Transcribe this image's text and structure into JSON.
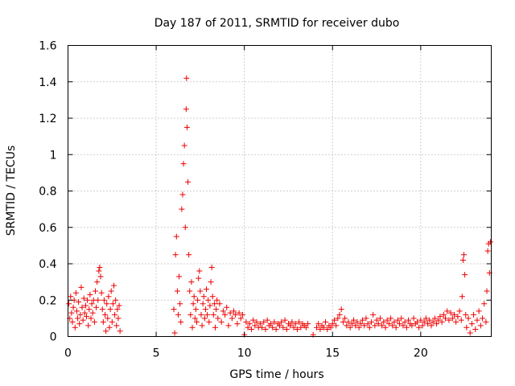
{
  "chart_data": {
    "type": "scatter",
    "title": "Day 187 of 2011, SRMTID for receiver dubo",
    "xlabel": "GPS time / hours",
    "ylabel": "SRMTID / TECUs",
    "xlim": [
      0,
      24
    ],
    "ylim": [
      0,
      1.6
    ],
    "xticks": [
      0,
      5,
      10,
      15,
      20
    ],
    "xtick_labels": [
      "0",
      "5",
      "10",
      "15",
      "20"
    ],
    "yticks": [
      0,
      0.2,
      0.4,
      0.6,
      0.8,
      1.0,
      1.2,
      1.4,
      1.6
    ],
    "ytick_labels": [
      "0",
      "0.2",
      "0.4",
      "0.6",
      "0.8",
      "1",
      "1.2",
      "1.4",
      "1.6"
    ],
    "grid": true,
    "marker": "+",
    "series": [
      {
        "name": "SRMTID",
        "color": "#ee0000",
        "points": [
          [
            0.05,
            0.18
          ],
          [
            0.1,
            0.1
          ],
          [
            0.15,
            0.22
          ],
          [
            0.2,
            0.13
          ],
          [
            0.25,
            0.08
          ],
          [
            0.3,
            0.16
          ],
          [
            0.35,
            0.2
          ],
          [
            0.4,
            0.05
          ],
          [
            0.45,
            0.24
          ],
          [
            0.5,
            0.14
          ],
          [
            0.55,
            0.1
          ],
          [
            0.6,
            0.19
          ],
          [
            0.65,
            0.07
          ],
          [
            0.7,
            0.12
          ],
          [
            0.75,
            0.27
          ],
          [
            0.8,
            0.16
          ],
          [
            0.85,
            0.09
          ],
          [
            0.9,
            0.21
          ],
          [
            0.95,
            0.13
          ],
          [
            1.0,
            0.17
          ],
          [
            1.05,
            0.11
          ],
          [
            1.1,
            0.2
          ],
          [
            1.15,
            0.06
          ],
          [
            1.2,
            0.15
          ],
          [
            1.25,
            0.23
          ],
          [
            1.3,
            0.1
          ],
          [
            1.35,
            0.18
          ],
          [
            1.4,
            0.13
          ],
          [
            1.45,
            0.2
          ],
          [
            1.5,
            0.08
          ],
          [
            1.55,
            0.25
          ],
          [
            1.6,
            0.16
          ],
          [
            1.65,
            0.3
          ],
          [
            1.7,
            0.2
          ],
          [
            1.75,
            0.36
          ],
          [
            1.8,
            0.38
          ],
          [
            1.85,
            0.33
          ],
          [
            1.9,
            0.24
          ],
          [
            1.95,
            0.15
          ],
          [
            2.0,
            0.08
          ],
          [
            2.05,
            0.2
          ],
          [
            2.1,
            0.12
          ],
          [
            2.15,
            0.03
          ],
          [
            2.2,
            0.18
          ],
          [
            2.25,
            0.1
          ],
          [
            2.3,
            0.22
          ],
          [
            2.35,
            0.05
          ],
          [
            2.4,
            0.15
          ],
          [
            2.45,
            0.25
          ],
          [
            2.5,
            0.08
          ],
          [
            2.55,
            0.18
          ],
          [
            2.6,
            0.28
          ],
          [
            2.65,
            0.12
          ],
          [
            2.7,
            0.2
          ],
          [
            2.75,
            0.06
          ],
          [
            2.8,
            0.15
          ],
          [
            2.85,
            0.1
          ],
          [
            2.9,
            0.17
          ],
          [
            2.95,
            0.03
          ],
          [
            6.0,
            0.15
          ],
          [
            6.05,
            0.02
          ],
          [
            6.1,
            0.45
          ],
          [
            6.15,
            0.55
          ],
          [
            6.2,
            0.25
          ],
          [
            6.25,
            0.12
          ],
          [
            6.3,
            0.33
          ],
          [
            6.35,
            0.18
          ],
          [
            6.4,
            0.08
          ],
          [
            6.45,
            0.7
          ],
          [
            6.5,
            0.78
          ],
          [
            6.55,
            0.95
          ],
          [
            6.6,
            1.05
          ],
          [
            6.65,
            0.6
          ],
          [
            6.7,
            1.25
          ],
          [
            6.72,
            1.42
          ],
          [
            6.75,
            1.15
          ],
          [
            6.8,
            0.85
          ],
          [
            6.85,
            0.45
          ],
          [
            6.9,
            0.25
          ],
          [
            6.95,
            0.12
          ],
          [
            7.0,
            0.3
          ],
          [
            7.05,
            0.05
          ],
          [
            7.1,
            0.18
          ],
          [
            7.15,
            0.22
          ],
          [
            7.2,
            0.1
          ],
          [
            7.25,
            0.15
          ],
          [
            7.3,
            0.08
          ],
          [
            7.35,
            0.2
          ],
          [
            7.4,
            0.32
          ],
          [
            7.45,
            0.36
          ],
          [
            7.5,
            0.25
          ],
          [
            7.55,
            0.12
          ],
          [
            7.6,
            0.06
          ],
          [
            7.65,
            0.18
          ],
          [
            7.7,
            0.22
          ],
          [
            7.75,
            0.1
          ],
          [
            7.8,
            0.15
          ],
          [
            7.85,
            0.26
          ],
          [
            7.9,
            0.12
          ],
          [
            7.95,
            0.2
          ],
          [
            8.0,
            0.08
          ],
          [
            8.05,
            0.17
          ],
          [
            8.1,
            0.3
          ],
          [
            8.15,
            0.38
          ],
          [
            8.2,
            0.22
          ],
          [
            8.25,
            0.12
          ],
          [
            8.3,
            0.18
          ],
          [
            8.35,
            0.05
          ],
          [
            8.4,
            0.15
          ],
          [
            8.45,
            0.2
          ],
          [
            8.5,
            0.1
          ],
          [
            8.6,
            0.18
          ],
          [
            8.7,
            0.08
          ],
          [
            8.8,
            0.14
          ],
          [
            8.9,
            0.12
          ],
          [
            9.0,
            0.16
          ],
          [
            9.1,
            0.06
          ],
          [
            9.2,
            0.13
          ],
          [
            9.3,
            0.1
          ],
          [
            9.4,
            0.14
          ],
          [
            9.5,
            0.12
          ],
          [
            9.6,
            0.07
          ],
          [
            9.7,
            0.13
          ],
          [
            9.8,
            0.1
          ],
          [
            9.9,
            0.12
          ],
          [
            10.0,
            0.01
          ],
          [
            10.1,
            0.08
          ],
          [
            10.2,
            0.05
          ],
          [
            10.3,
            0.07
          ],
          [
            10.4,
            0.04
          ],
          [
            10.5,
            0.09
          ],
          [
            10.6,
            0.06
          ],
          [
            10.7,
            0.08
          ],
          [
            10.8,
            0.05
          ],
          [
            10.9,
            0.07
          ],
          [
            11.0,
            0.05
          ],
          [
            11.1,
            0.08
          ],
          [
            11.2,
            0.04
          ],
          [
            11.3,
            0.09
          ],
          [
            11.4,
            0.06
          ],
          [
            11.5,
            0.07
          ],
          [
            11.6,
            0.05
          ],
          [
            11.7,
            0.08
          ],
          [
            11.8,
            0.04
          ],
          [
            11.9,
            0.07
          ],
          [
            12.0,
            0.06
          ],
          [
            12.1,
            0.08
          ],
          [
            12.2,
            0.05
          ],
          [
            12.3,
            0.09
          ],
          [
            12.4,
            0.04
          ],
          [
            12.5,
            0.07
          ],
          [
            12.6,
            0.06
          ],
          [
            12.7,
            0.08
          ],
          [
            12.8,
            0.05
          ],
          [
            12.9,
            0.07
          ],
          [
            13.0,
            0.04
          ],
          [
            13.1,
            0.08
          ],
          [
            13.2,
            0.05
          ],
          [
            13.3,
            0.07
          ],
          [
            13.4,
            0.06
          ],
          [
            13.5,
            0.05
          ],
          [
            13.6,
            0.07
          ],
          [
            13.9,
            0.01
          ],
          [
            14.1,
            0.05
          ],
          [
            14.2,
            0.07
          ],
          [
            14.3,
            0.04
          ],
          [
            14.4,
            0.06
          ],
          [
            14.5,
            0.05
          ],
          [
            14.6,
            0.08
          ],
          [
            14.7,
            0.04
          ],
          [
            14.8,
            0.06
          ],
          [
            14.9,
            0.05
          ],
          [
            15.0,
            0.07
          ],
          [
            15.1,
            0.09
          ],
          [
            15.2,
            0.06
          ],
          [
            15.3,
            0.1
          ],
          [
            15.4,
            0.12
          ],
          [
            15.5,
            0.15
          ],
          [
            15.6,
            0.08
          ],
          [
            15.7,
            0.1
          ],
          [
            15.8,
            0.06
          ],
          [
            15.9,
            0.08
          ],
          [
            16.0,
            0.05
          ],
          [
            16.1,
            0.07
          ],
          [
            16.2,
            0.09
          ],
          [
            16.3,
            0.06
          ],
          [
            16.4,
            0.08
          ],
          [
            16.5,
            0.05
          ],
          [
            16.6,
            0.07
          ],
          [
            16.7,
            0.09
          ],
          [
            16.8,
            0.06
          ],
          [
            16.9,
            0.1
          ],
          [
            17.0,
            0.07
          ],
          [
            17.1,
            0.05
          ],
          [
            17.2,
            0.08
          ],
          [
            17.3,
            0.12
          ],
          [
            17.4,
            0.06
          ],
          [
            17.5,
            0.09
          ],
          [
            17.6,
            0.07
          ],
          [
            17.7,
            0.1
          ],
          [
            17.8,
            0.06
          ],
          [
            17.9,
            0.08
          ],
          [
            18.0,
            0.05
          ],
          [
            18.1,
            0.09
          ],
          [
            18.2,
            0.07
          ],
          [
            18.3,
            0.1
          ],
          [
            18.4,
            0.06
          ],
          [
            18.5,
            0.08
          ],
          [
            18.6,
            0.05
          ],
          [
            18.7,
            0.09
          ],
          [
            18.8,
            0.07
          ],
          [
            18.9,
            0.1
          ],
          [
            19.0,
            0.06
          ],
          [
            19.1,
            0.08
          ],
          [
            19.2,
            0.05
          ],
          [
            19.3,
            0.09
          ],
          [
            19.4,
            0.07
          ],
          [
            19.5,
            0.06
          ],
          [
            19.6,
            0.1
          ],
          [
            19.7,
            0.07
          ],
          [
            19.8,
            0.08
          ],
          [
            19.9,
            0.05
          ],
          [
            20.0,
            0.09
          ],
          [
            20.1,
            0.06
          ],
          [
            20.2,
            0.08
          ],
          [
            20.3,
            0.1
          ],
          [
            20.4,
            0.07
          ],
          [
            20.5,
            0.09
          ],
          [
            20.6,
            0.06
          ],
          [
            20.7,
            0.08
          ],
          [
            20.8,
            0.1
          ],
          [
            20.9,
            0.07
          ],
          [
            21.0,
            0.09
          ],
          [
            21.1,
            0.11
          ],
          [
            21.2,
            0.08
          ],
          [
            21.3,
            0.12
          ],
          [
            21.4,
            0.1
          ],
          [
            21.5,
            0.14
          ],
          [
            21.6,
            0.09
          ],
          [
            21.7,
            0.13
          ],
          [
            21.8,
            0.1
          ],
          [
            21.9,
            0.12
          ],
          [
            22.0,
            0.08
          ],
          [
            22.1,
            0.11
          ],
          [
            22.2,
            0.14
          ],
          [
            22.3,
            0.09
          ],
          [
            22.35,
            0.22
          ],
          [
            22.4,
            0.42
          ],
          [
            22.45,
            0.45
          ],
          [
            22.5,
            0.34
          ],
          [
            22.55,
            0.12
          ],
          [
            22.6,
            0.05
          ],
          [
            22.7,
            0.1
          ],
          [
            22.8,
            0.02
          ],
          [
            22.9,
            0.07
          ],
          [
            23.0,
            0.12
          ],
          [
            23.1,
            0.04
          ],
          [
            23.2,
            0.09
          ],
          [
            23.3,
            0.14
          ],
          [
            23.4,
            0.06
          ],
          [
            23.5,
            0.1
          ],
          [
            23.6,
            0.18
          ],
          [
            23.7,
            0.08
          ],
          [
            23.75,
            0.25
          ],
          [
            23.8,
            0.47
          ],
          [
            23.85,
            0.51
          ],
          [
            23.9,
            0.35
          ],
          [
            23.95,
            0.52
          ]
        ]
      }
    ]
  }
}
